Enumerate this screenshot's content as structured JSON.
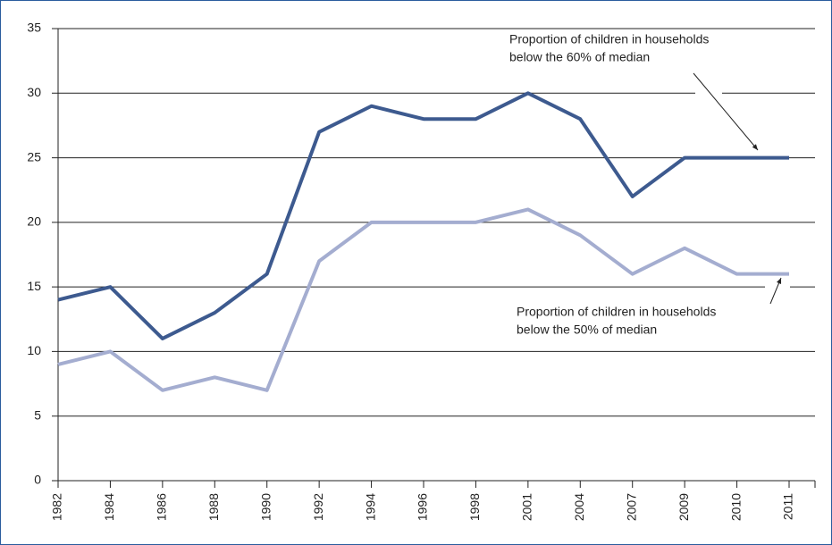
{
  "chart_data": {
    "type": "line",
    "categories": [
      "1982",
      "1984",
      "1986",
      "1988",
      "1990",
      "1992",
      "1994",
      "1996",
      "1998",
      "2001",
      "2004",
      "2007",
      "2009",
      "2010",
      "2011"
    ],
    "series": [
      {
        "name": "Proportion of children in households below the 60% of median",
        "color": "#3d5a8f",
        "values": [
          14,
          15,
          11,
          13,
          16,
          27,
          29,
          28,
          28,
          30,
          28,
          22,
          25,
          25,
          25
        ]
      },
      {
        "name": "Proportion of children in households below the 50% of median",
        "color": "#a4add0",
        "values": [
          9,
          10,
          7,
          8,
          7,
          17,
          20,
          20,
          20,
          21,
          19,
          16,
          18,
          16,
          16
        ]
      }
    ],
    "annotations": [
      {
        "lines": [
          "Proportion of children in households",
          "below the 60% of median"
        ]
      },
      {
        "lines": [
          "Proportion of children in households",
          "below the 50% of median"
        ]
      }
    ],
    "ylim": [
      0,
      35
    ],
    "yticks": [
      0,
      5,
      10,
      15,
      20,
      25,
      30,
      35
    ],
    "grid": true
  }
}
